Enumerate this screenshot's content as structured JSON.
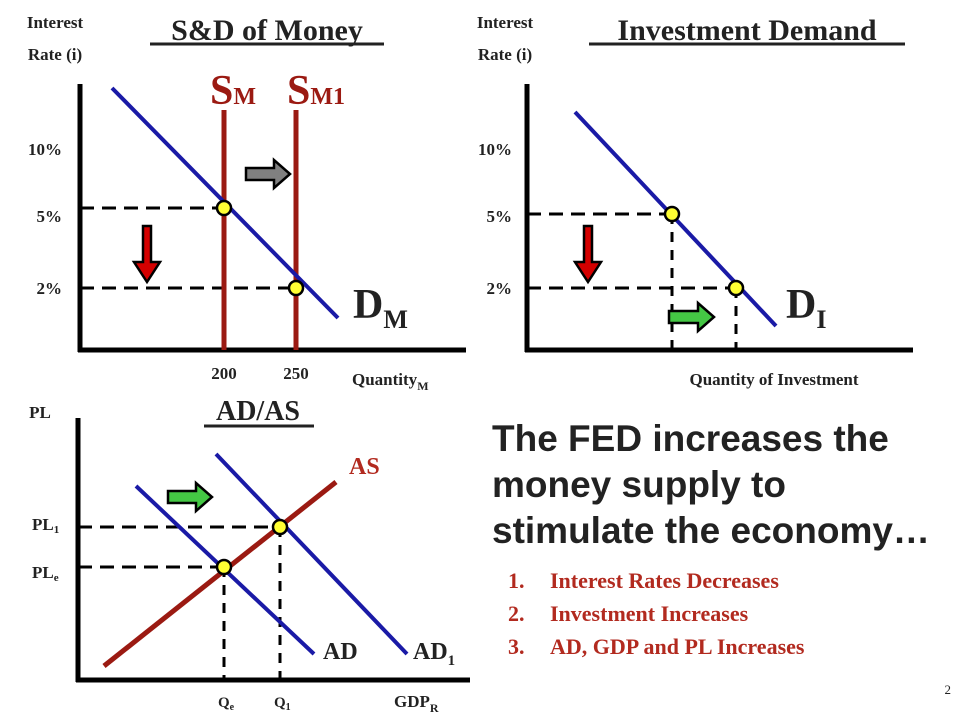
{
  "colors": {
    "axis": "#000000",
    "demand": "#1a1aa6",
    "supply": "#9b1a12",
    "dot_fill": "#ffff33",
    "arrow_red": "#d40000",
    "arrow_gray": "#808080",
    "arrow_green": "#44c744",
    "text_dark": "#222222",
    "text_red": "#b22a1f"
  },
  "money_market": {
    "title": "S&D of Money",
    "y_axis_label_line1": "Interest",
    "y_axis_label_line2": "Rate (i)",
    "y_ticks": [
      "10%",
      "5%",
      "2%"
    ],
    "x_ticks": [
      "200",
      "250"
    ],
    "x_axis_label": "Quantity",
    "x_axis_label_sub": "M",
    "supply_label": "S",
    "supply_label_sub": "M",
    "supply_new_label": "S",
    "supply_new_label_sub": "M1",
    "demand_label": "D",
    "demand_label_sub": "M"
  },
  "investment_market": {
    "title": "Investment Demand",
    "y_axis_label_line1": "Interest",
    "y_axis_label_line2": "Rate (i)",
    "y_ticks": [
      "10%",
      "5%",
      "2%"
    ],
    "x_axis_label": "Quantity of Investment",
    "demand_label": "D",
    "demand_label_sub": "I"
  },
  "adas": {
    "title": "AD/AS",
    "y_axis_label": "PL",
    "pl1_label": "PL",
    "pl1_sub": "1",
    "ple_label": "PL",
    "ple_sub": "e",
    "as_label": "AS",
    "ad_label": "AD",
    "ad1_label": "AD",
    "ad1_sub": "1",
    "qe_label": "Q",
    "qe_sub": "e",
    "q1_label": "Q",
    "q1_sub": "1",
    "x_axis_label": "GDP",
    "x_axis_label_sub": "R"
  },
  "headline_text": "The FED increases the money supply to stimulate the economy…",
  "steps": [
    {
      "num": "1.",
      "text": "Interest Rates Decreases"
    },
    {
      "num": "2.",
      "text": "Investment Increases"
    },
    {
      "num": "3.",
      "text": "AD, GDP and PL Increases"
    }
  ],
  "slide_number": "2"
}
